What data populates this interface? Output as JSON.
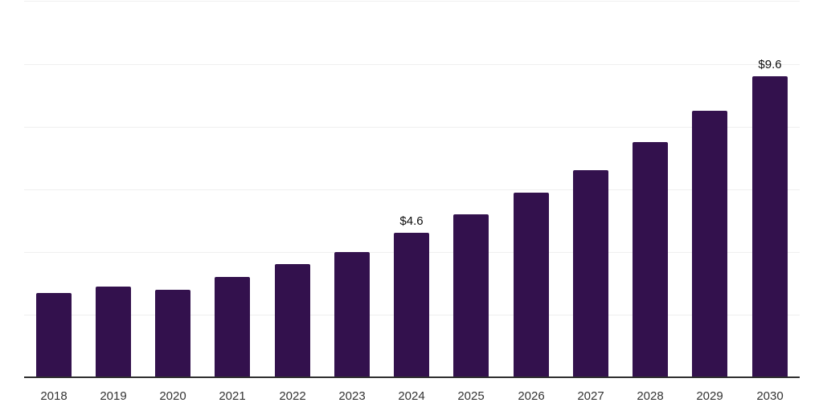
{
  "chart_data": {
    "type": "bar",
    "title": "",
    "xlabel": "",
    "ylabel": "",
    "categories": [
      "2018",
      "2019",
      "2020",
      "2021",
      "2022",
      "2023",
      "2024",
      "2025",
      "2026",
      "2027",
      "2028",
      "2029",
      "2030"
    ],
    "values": [
      2.7,
      2.9,
      2.8,
      3.2,
      3.6,
      4.0,
      4.6,
      5.2,
      5.9,
      6.6,
      7.5,
      8.5,
      9.6
    ],
    "data_labels": {
      "2024": "$4.6",
      "2030": "$9.6"
    },
    "ylim": [
      0,
      12
    ],
    "grid_step": 2,
    "grid": "horizontal-only",
    "legend_position": "none",
    "colors": {
      "bar": "#33114d",
      "gridline": "#efefef",
      "axis": "#2f2f2f",
      "tick_label": "#333333",
      "data_label": "#0d0d0d"
    }
  }
}
